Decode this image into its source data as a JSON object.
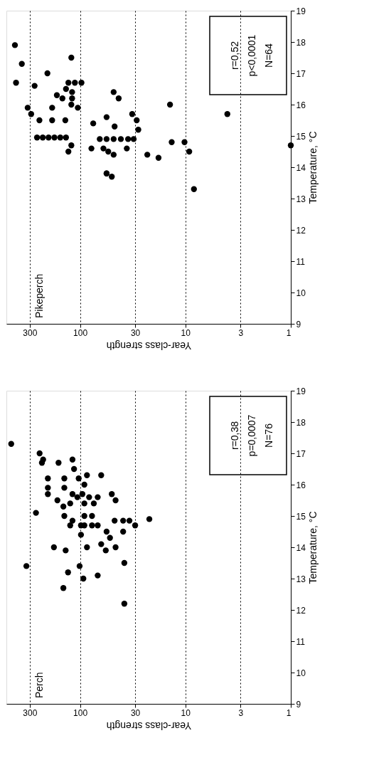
{
  "chart_data": [
    {
      "type": "scatter",
      "title": "Pikeperch",
      "xlabel": "Year-class strength",
      "ylabel": "Temperature, °C",
      "color": "#000000",
      "marker": "circle",
      "log": "x",
      "grid": "x",
      "xlim": [
        500,
        1
      ],
      "xticks": [
        300,
        100,
        30,
        10,
        3,
        1
      ],
      "ylim": [
        9,
        19
      ],
      "yticks": [
        9,
        10,
        11,
        12,
        13,
        14,
        15,
        16,
        17,
        18,
        19
      ],
      "annotations": [
        "r=0,52",
        "p<0,0001",
        "N=64"
      ],
      "values": [
        17.9,
        17.3,
        16.7,
        17.5,
        17.0,
        16.6,
        16.7,
        16.7,
        16.7,
        16.5,
        16.3,
        16.2,
        16.4,
        16.2,
        15.9,
        15.7,
        15.5,
        15.9,
        15.5,
        15.5,
        16.0,
        15.9,
        16.4,
        16.2,
        15.6,
        15.4,
        15.3,
        15.7,
        15.5,
        15.2,
        16.0,
        15.7,
        14.7,
        14.95,
        14.95,
        14.95,
        14.95,
        14.95,
        14.95,
        14.9,
        14.9,
        14.9,
        14.9,
        14.9,
        14.9,
        14.8,
        14.8,
        14.5,
        14.7,
        14.5,
        14.6,
        14.6,
        14.5,
        14.4,
        14.6,
        14.4,
        14.3,
        13.8,
        13.8,
        13.7,
        13.3
      ],
      "x": [
        415,
        357,
        405,
        121,
        204,
        270,
        129,
        112,
        97,
        136,
        166,
        147,
        119,
        119,
        314,
        291,
        243,
        184,
        184,
        138,
        121,
        105,
        48,
        43,
        56,
        75,
        47,
        32,
        29,
        28,
        14,
        4,
        1,
        256,
        226,
        199,
        175,
        154,
        136,
        65,
        56,
        48,
        41,
        35,
        31,
        13.5,
        10.2,
        9.2,
        121,
        129,
        78,
        60,
        54,
        48,
        36,
        23,
        18,
        56,
        56,
        50,
        8.3
      ]
    },
    {
      "type": "scatter",
      "title": "Perch",
      "xlabel": "Year-class strength",
      "ylabel": "Temperature, °C",
      "color": "#000000",
      "marker": "circle",
      "log": "x",
      "grid": "x",
      "xlim": [
        500,
        1
      ],
      "xticks": [
        300,
        100,
        30,
        10,
        3,
        1
      ],
      "ylim": [
        9,
        19
      ],
      "yticks": [
        9,
        10,
        11,
        12,
        13,
        14,
        15,
        16,
        17,
        18,
        19
      ],
      "annotations": [
        "r=0,38",
        "p=0,0007",
        "N=76"
      ],
      "values": [
        17.3,
        17.0,
        16.8,
        16.7,
        16.7,
        16.8,
        16.5,
        16.2,
        16.2,
        16.2,
        16.3,
        16.3,
        16.0,
        15.9,
        15.9,
        15.7,
        15.7,
        15.6,
        15.7,
        15.6,
        15.6,
        15.5,
        15.4,
        15.3,
        15.4,
        15.4,
        15.7,
        15.5,
        15.1,
        15.0,
        15.0,
        15.0,
        14.85,
        14.85,
        14.85,
        14.85,
        14.7,
        14.9,
        14.7,
        14.7,
        14.7,
        14.7,
        14.7,
        14.5,
        14.5,
        14.4,
        14.3,
        14.0,
        13.9,
        14.0,
        14.1,
        13.9,
        14.0,
        13.4,
        13.4,
        13.5,
        13.2,
        13.0,
        13.1,
        12.7,
        12.2
      ],
      "x": [
        450,
        242,
        224,
        230,
        160,
        118,
        114,
        202,
        141,
        103,
        86,
        63,
        91,
        202,
        141,
        202,
        118,
        106,
        95,
        82,
        68,
        164,
        124,
        144,
        91,
        74,
        50,
        46,
        262,
        141,
        91,
        77,
        118,
        47,
        39,
        34,
        30,
        22,
        98,
        77,
        124,
        91,
        68,
        56,
        39,
        98,
        52,
        177,
        137,
        86,
        63,
        57,
        46,
        323,
        101,
        38,
        130,
        93,
        68,
        144,
        38
      ]
    }
  ]
}
